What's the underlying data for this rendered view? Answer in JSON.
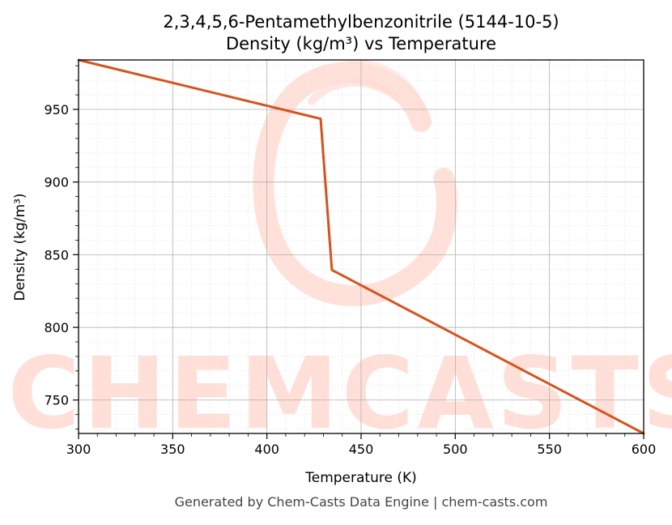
{
  "chart_data": {
    "type": "line",
    "title_line1": "2,3,4,5,6-Pentamethylbenzonitrile (5144-10-5)",
    "title_line2": "Density (kg/m³) vs Temperature",
    "xlabel": "Temperature (K)",
    "ylabel": "Density (kg/m³)",
    "xlim": [
      300,
      600
    ],
    "ylim": [
      727,
      984
    ],
    "x_ticks": [
      300,
      350,
      400,
      450,
      500,
      550,
      600
    ],
    "y_ticks": [
      750,
      800,
      850,
      900,
      950
    ],
    "grid": true,
    "line_color": "#d4541f",
    "series": [
      {
        "x": [
          300,
          428.5,
          434.5,
          600
        ],
        "y": [
          984,
          943.5,
          839.5,
          727
        ]
      }
    ]
  },
  "watermark": {
    "text": "CHEMCASTS",
    "color": "#ffdcd4"
  },
  "footer": "Generated by Chem-Casts Data Engine | chem-casts.com"
}
